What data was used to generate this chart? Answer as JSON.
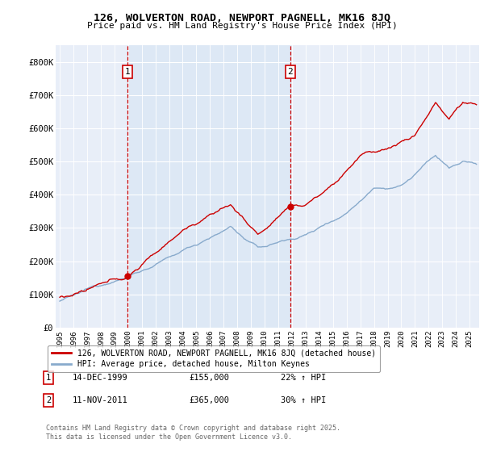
{
  "title": "126, WOLVERTON ROAD, NEWPORT PAGNELL, MK16 8JQ",
  "subtitle": "Price paid vs. HM Land Registry's House Price Index (HPI)",
  "red_label": "126, WOLVERTON ROAD, NEWPORT PAGNELL, MK16 8JQ (detached house)",
  "blue_label": "HPI: Average price, detached house, Milton Keynes",
  "annotation1": {
    "num": "1",
    "date": "14-DEC-1999",
    "price": "£155,000",
    "pct": "22% ↑ HPI"
  },
  "annotation2": {
    "num": "2",
    "date": "11-NOV-2011",
    "price": "£365,000",
    "pct": "30% ↑ HPI"
  },
  "footer": "Contains HM Land Registry data © Crown copyright and database right 2025.\nThis data is licensed under the Open Government Licence v3.0.",
  "red_color": "#cc0000",
  "blue_color": "#88aacc",
  "shade_color": "#dde8f5",
  "grid_color": "#cccccc",
  "background_color": "#e8eef8",
  "ylim": [
    0,
    850000
  ],
  "yticks": [
    0,
    100000,
    200000,
    300000,
    400000,
    500000,
    600000,
    700000,
    800000
  ],
  "ytick_labels": [
    "£0",
    "£100K",
    "£200K",
    "£300K",
    "£400K",
    "£500K",
    "£600K",
    "£700K",
    "£800K"
  ],
  "t1": 1999.96,
  "t2": 2011.87,
  "price1": 155000,
  "price2": 365000,
  "xstart": 1995,
  "xend": 2025.5
}
